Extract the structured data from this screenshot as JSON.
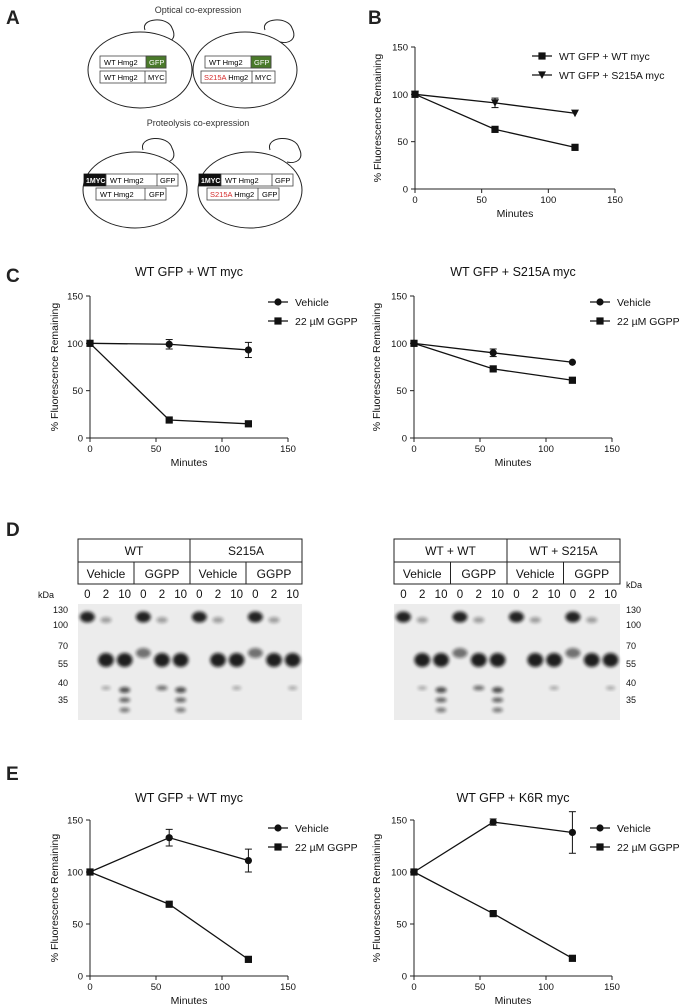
{
  "panels": {
    "A": {
      "letter": "A",
      "optical_title": "Optical co-expression",
      "proteolysis_title": "Proteolysis co-expression",
      "optical_cells": [
        {
          "top": {
            "left": "WT Hmg2",
            "right": "GFP"
          },
          "bottom": {
            "left": "WT Hmg2",
            "right": "MYC",
            "left_red_prefix": ""
          }
        },
        {
          "top": {
            "left": "WT Hmg2",
            "right": "GFP"
          },
          "bottom": {
            "left": " Hmg2",
            "right": "MYC",
            "left_red_prefix": "S215A"
          }
        }
      ],
      "proteolysis_cells": [
        {
          "tag": "1MYC",
          "top": {
            "left": "WT Hmg2",
            "right": "GFP"
          },
          "bottom": {
            "left": "WT Hmg2",
            "right": "GFP",
            "left_red_prefix": ""
          }
        },
        {
          "tag": "1MYC",
          "top": {
            "left": "WT Hmg2",
            "right": "GFP"
          },
          "bottom": {
            "left": " Hmg2",
            "right": "GFP",
            "left_red_prefix": "S215A"
          }
        }
      ],
      "colors": {
        "gfp": "#4a7a2a",
        "myc_tag": "#111111",
        "mutant_text": "#d42a2a"
      }
    },
    "B": {
      "letter": "B"
    },
    "C": {
      "letter": "C"
    },
    "D": {
      "letter": "D",
      "left_blot": {
        "groups": [
          {
            "label": "WT",
            "conditions": [
              {
                "label": "Vehicle",
                "lanes": [
                  "0",
                  "2",
                  "10"
                ]
              },
              {
                "label": "GGPP",
                "lanes": [
                  "0",
                  "2",
                  "10"
                ]
              }
            ]
          },
          {
            "label": "S215A",
            "conditions": [
              {
                "label": "Vehicle",
                "lanes": [
                  "0",
                  "2",
                  "10"
                ]
              },
              {
                "label": "GGPP",
                "lanes": [
                  "0",
                  "2",
                  "10"
                ]
              }
            ]
          }
        ]
      },
      "right_blot": {
        "groups": [
          {
            "label": "WT + WT",
            "conditions": [
              {
                "label": "Vehicle",
                "lanes": [
                  "0",
                  "2",
                  "10"
                ]
              },
              {
                "label": "GGPP",
                "lanes": [
                  "0",
                  "2",
                  "10"
                ]
              }
            ]
          },
          {
            "label": "WT + S215A",
            "conditions": [
              {
                "label": "Vehicle",
                "lanes": [
                  "0",
                  "2",
                  "10"
                ]
              },
              {
                "label": "GGPP",
                "lanes": [
                  "0",
                  "2",
                  "10"
                ]
              }
            ]
          }
        ]
      },
      "kda_label": "kDa",
      "markers": [
        "130",
        "100",
        "70",
        "55",
        "40",
        "35"
      ]
    },
    "E": {
      "letter": "E"
    }
  },
  "chart_data": [
    {
      "id": "B",
      "type": "line",
      "title": "",
      "xlabel": "Minutes",
      "ylabel": "% Fluorescence Remaining",
      "xlim": [
        0,
        150
      ],
      "ylim": [
        0,
        150
      ],
      "xticks": [
        0,
        50,
        100,
        150
      ],
      "yticks": [
        0,
        50,
        100,
        150
      ],
      "legend": "top-right",
      "series": [
        {
          "name": "WT GFP + WT myc",
          "marker": "square",
          "x": [
            0,
            60,
            120
          ],
          "y": [
            100,
            63,
            44
          ],
          "err": [
            0,
            0,
            0
          ]
        },
        {
          "name": "WT GFP + S215A myc",
          "marker": "triangle-down",
          "x": [
            0,
            60,
            120
          ],
          "y": [
            100,
            91,
            80
          ],
          "err": [
            0,
            5,
            0
          ]
        }
      ]
    },
    {
      "id": "C1",
      "type": "line",
      "title": "WT GFP + WT myc",
      "xlabel": "Minutes",
      "ylabel": "% Fluorescence Remaining",
      "xlim": [
        0,
        150
      ],
      "ylim": [
        0,
        150
      ],
      "xticks": [
        0,
        50,
        100,
        150
      ],
      "yticks": [
        0,
        50,
        100,
        150
      ],
      "legend": "top-right",
      "series": [
        {
          "name": "Vehicle",
          "marker": "circle",
          "x": [
            0,
            60,
            120
          ],
          "y": [
            100,
            99,
            93
          ],
          "err": [
            0,
            5,
            8
          ]
        },
        {
          "name": "22 µM GGPP",
          "marker": "square",
          "x": [
            0,
            60,
            120
          ],
          "y": [
            100,
            19,
            15
          ],
          "err": [
            0,
            0,
            0
          ]
        }
      ]
    },
    {
      "id": "C2",
      "type": "line",
      "title": "WT GFP + S215A myc",
      "xlabel": "Minutes",
      "ylabel": "% Fluorescence Remaining",
      "xlim": [
        0,
        150
      ],
      "ylim": [
        0,
        150
      ],
      "xticks": [
        0,
        50,
        100,
        150
      ],
      "yticks": [
        0,
        50,
        100,
        150
      ],
      "legend": "top-right",
      "series": [
        {
          "name": "Vehicle",
          "marker": "circle",
          "x": [
            0,
            60,
            120
          ],
          "y": [
            100,
            90,
            80
          ],
          "err": [
            0,
            4,
            0
          ]
        },
        {
          "name": "22 µM GGPP",
          "marker": "square",
          "x": [
            0,
            60,
            120
          ],
          "y": [
            100,
            73,
            61
          ],
          "err": [
            0,
            0,
            0
          ]
        }
      ]
    },
    {
      "id": "E1",
      "type": "line",
      "title": "WT GFP + WT myc",
      "xlabel": "Minutes",
      "ylabel": "% Fluorescence Remaining",
      "xlim": [
        0,
        150
      ],
      "ylim": [
        0,
        150
      ],
      "xticks": [
        0,
        50,
        100,
        150
      ],
      "yticks": [
        0,
        50,
        100,
        150
      ],
      "legend": "top-right",
      "series": [
        {
          "name": "Vehicle",
          "marker": "circle",
          "x": [
            0,
            60,
            120
          ],
          "y": [
            100,
            133,
            111
          ],
          "err": [
            0,
            8,
            11
          ]
        },
        {
          "name": "22 µM GGPP",
          "marker": "square",
          "x": [
            0,
            60,
            120
          ],
          "y": [
            100,
            69,
            16
          ],
          "err": [
            0,
            0,
            0
          ]
        }
      ]
    },
    {
      "id": "E2",
      "type": "line",
      "title": "WT GFP + K6R myc",
      "xlabel": "Minutes",
      "ylabel": "% Fluorescence Remaining",
      "xlim": [
        0,
        150
      ],
      "ylim": [
        0,
        150
      ],
      "xticks": [
        0,
        50,
        100,
        150
      ],
      "yticks": [
        0,
        50,
        100,
        150
      ],
      "legend": "top-right",
      "series": [
        {
          "name": "Vehicle",
          "marker": "circle",
          "x": [
            0,
            60,
            120
          ],
          "y": [
            100,
            148,
            138
          ],
          "err": [
            0,
            3,
            20
          ]
        },
        {
          "name": "22 µM GGPP",
          "marker": "square",
          "x": [
            0,
            60,
            120
          ],
          "y": [
            100,
            60,
            17
          ],
          "err": [
            0,
            0,
            0
          ]
        }
      ]
    }
  ]
}
